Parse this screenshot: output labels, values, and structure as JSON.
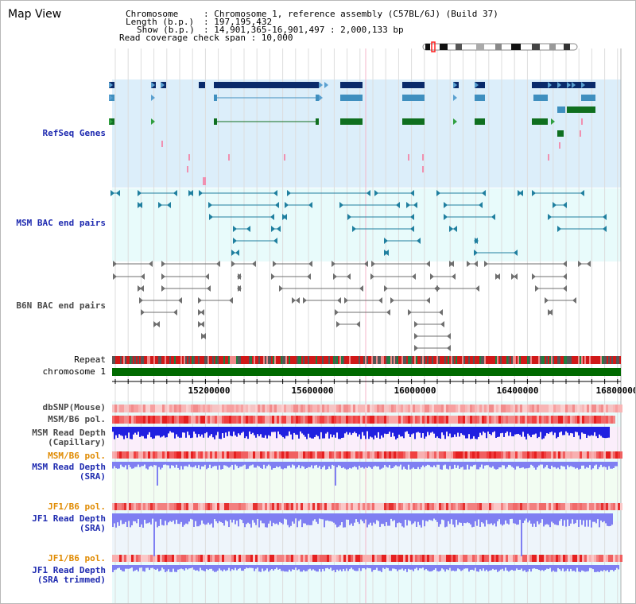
{
  "title": "Map View",
  "header": {
    "chromosome_key": "Chromosome",
    "chromosome_val": ": Chromosome 1, reference assembly (C57BL/6J) (Build 37)",
    "length_key": "Length (b.p.)",
    "length_val": ": 197,195,432",
    "show_key": "Show (b.p.)",
    "show_val": ": 14,901,365-16,901,497 : 2,000,133 bp",
    "coverage_text": "Read coverage check span : 10,000"
  },
  "tracks": {
    "refseq": "RefSeq Genes",
    "msm_bac": "MSM BAC end pairs",
    "b6n_bac": "B6N BAC end pairs",
    "repeat": "Repeat",
    "chromosome": "chromosome 1",
    "dbsnp": "dbSNP(Mouse)",
    "msm_b6_pol_1": "MSM/B6 pol.",
    "msm_depth_cap_1": "MSM Read Depth",
    "msm_depth_cap_2": "(Capillary)",
    "msm_b6_pol_2": "MSM/B6 pol.",
    "msm_depth_sra_1": "MSM Read Depth",
    "msm_depth_sra_2": "(SRA)",
    "jf1_b6_pol_1": "JF1/B6 pol.",
    "jf1_depth_sra_1": "JF1 Read Depth",
    "jf1_depth_sra_2": "(SRA)",
    "jf1_b6_pol_2": "JF1/B6 pol.",
    "jf1_depth_trim_1": "JF1 Read Depth",
    "jf1_depth_trim_2": "(SRA trimmed)"
  },
  "axis": {
    "ticks": [
      "15200000",
      "15600000",
      "16000000",
      "16400000",
      "16800000"
    ]
  },
  "colors": {
    "refseq_bg": "#dceefa",
    "bac_bg": "#e8fbfb",
    "gene_dark": "#0a2a6a",
    "gene_mid": "#3f8fbf",
    "gene_green": "#0f6f1f",
    "bac_teal": "#1f7f9f",
    "bac_gray": "#6f6f6f",
    "depth_blue": "#2020e0",
    "depth_light": "#7f7ff2",
    "pol_red": "#f03030"
  }
}
